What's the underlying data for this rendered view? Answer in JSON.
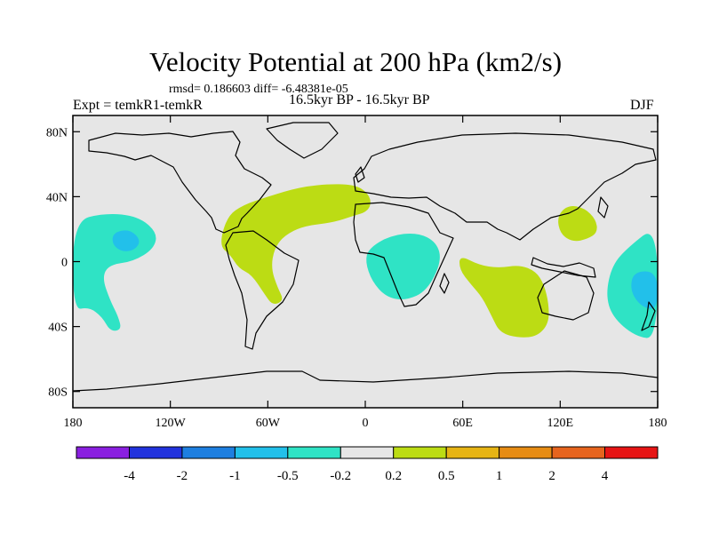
{
  "header": {
    "title": "Velocity Potential at 200 hPa (km2/s)",
    "stats": "rmsd= 0.186603 diff= -6.48381e-05",
    "experiment": "Expt = temkR1-temkR",
    "period": "16.5kyr BP - 16.5kyr BP",
    "season": "DJF"
  },
  "chart_data": {
    "type": "contour-map",
    "variable": "Velocity Potential at 200 hPa",
    "units": "km2/s",
    "projection": "cylindrical-equidistant",
    "lon_range": [
      -180,
      180
    ],
    "lat_range": [
      -90,
      90
    ],
    "x_ticks": [
      {
        "value": -180,
        "label": "180"
      },
      {
        "value": -120,
        "label": "120W"
      },
      {
        "value": -60,
        "label": "60W"
      },
      {
        "value": 0,
        "label": "0"
      },
      {
        "value": 60,
        "label": "60E"
      },
      {
        "value": 120,
        "label": "120E"
      },
      {
        "value": 180,
        "label": "180"
      }
    ],
    "y_ticks": [
      {
        "value": 80,
        "label": "80N"
      },
      {
        "value": 40,
        "label": "40N"
      },
      {
        "value": 0,
        "label": "0"
      },
      {
        "value": -40,
        "label": "40S"
      },
      {
        "value": -80,
        "label": "80S"
      }
    ],
    "colorbar": {
      "labels": [
        "-4",
        "-2",
        "-1",
        "-0.5",
        "-0.2",
        "0.2",
        "0.5",
        "1",
        "2",
        "4"
      ],
      "colors": [
        "#8a1fe0",
        "#2233dd",
        "#1e7fe0",
        "#22c0ea",
        "#2fe3c5",
        "#e6e6e6",
        "#bcdc14",
        "#e6b414",
        "#e68c14",
        "#e6641e",
        "#e61414"
      ]
    },
    "regions": [
      {
        "name": "central-atlantic-positive",
        "level": "0.2-0.5",
        "color": "#bcdc14",
        "lonlat": [
          [
            -90,
            10
          ],
          [
            -85,
            28
          ],
          [
            -75,
            35
          ],
          [
            -60,
            40
          ],
          [
            -40,
            46
          ],
          [
            -20,
            48
          ],
          [
            -4,
            47
          ],
          [
            4,
            39
          ],
          [
            2,
            31
          ],
          [
            -8,
            28
          ],
          [
            -20,
            24
          ],
          [
            -38,
            22
          ],
          [
            -50,
            16
          ],
          [
            -56,
            8
          ],
          [
            -58,
            -4
          ],
          [
            -54,
            -16
          ],
          [
            -50,
            -24
          ],
          [
            -57,
            -27
          ],
          [
            -62,
            -20
          ],
          [
            -70,
            -8
          ],
          [
            -78,
            -4
          ],
          [
            -83,
            4
          ]
        ]
      },
      {
        "name": "indian-ocean-positive",
        "level": "0.2-0.5",
        "color": "#bcdc14",
        "lonlat": [
          [
            58,
            4
          ],
          [
            70,
            -2
          ],
          [
            82,
            -4
          ],
          [
            95,
            -2
          ],
          [
            105,
            -6
          ],
          [
            110,
            -14
          ],
          [
            113,
            -26
          ],
          [
            113,
            -38
          ],
          [
            106,
            -46
          ],
          [
            95,
            -47
          ],
          [
            83,
            -44
          ],
          [
            78,
            -34
          ],
          [
            72,
            -22
          ],
          [
            65,
            -14
          ],
          [
            58,
            -5
          ]
        ]
      },
      {
        "name": "western-pacific-positive",
        "level": "0.2-0.5",
        "color": "#bcdc14",
        "lonlat": [
          [
            118,
            28
          ],
          [
            125,
            35
          ],
          [
            135,
            33
          ],
          [
            142,
            26
          ],
          [
            143,
            18
          ],
          [
            137,
            14
          ],
          [
            128,
            12
          ],
          [
            120,
            17
          ]
        ]
      },
      {
        "name": "eastern-pacific-negative",
        "level": "-0.5 to -0.2",
        "color": "#2fe3c5",
        "lonlat": [
          [
            -180,
            25
          ],
          [
            -160,
            30
          ],
          [
            -140,
            28
          ],
          [
            -128,
            18
          ],
          [
            -130,
            8
          ],
          [
            -143,
            0
          ],
          [
            -158,
            -2
          ],
          [
            -162,
            -10
          ],
          [
            -157,
            -24
          ],
          [
            -152,
            -34
          ],
          [
            -150,
            -42
          ],
          [
            -157,
            -43
          ],
          [
            -162,
            -34
          ],
          [
            -170,
            -28
          ],
          [
            -180,
            -30
          ]
        ]
      },
      {
        "name": "east-pacific-core",
        "level": "-1 to -0.5",
        "color": "#22c0ea",
        "lonlat": [
          [
            -155,
            18
          ],
          [
            -145,
            20
          ],
          [
            -138,
            13
          ],
          [
            -142,
            7
          ],
          [
            -150,
            6
          ],
          [
            -156,
            11
          ]
        ]
      },
      {
        "name": "western-pacific-negative",
        "level": "-0.5 to -0.2",
        "color": "#2fe3c5",
        "lonlat": [
          [
            152,
            -2
          ],
          [
            162,
            9
          ],
          [
            180,
            23
          ],
          [
            180,
            -48
          ],
          [
            166,
            -46
          ],
          [
            152,
            -34
          ],
          [
            148,
            -20
          ]
        ]
      },
      {
        "name": "western-pacific-core",
        "level": "-1 to -0.5",
        "color": "#22c0ea",
        "lonlat": [
          [
            165,
            -6
          ],
          [
            180,
            -6
          ],
          [
            180,
            -30
          ],
          [
            170,
            -28
          ],
          [
            163,
            -18
          ]
        ]
      },
      {
        "name": "africa-negative",
        "level": "-0.5 to -0.2",
        "color": "#2fe3c5",
        "lonlat": [
          [
            2,
            8
          ],
          [
            15,
            16
          ],
          [
            32,
            18
          ],
          [
            44,
            12
          ],
          [
            47,
            0
          ],
          [
            38,
            -18
          ],
          [
            25,
            -24
          ],
          [
            13,
            -22
          ],
          [
            4,
            -12
          ],
          [
            0,
            0
          ]
        ]
      }
    ]
  }
}
